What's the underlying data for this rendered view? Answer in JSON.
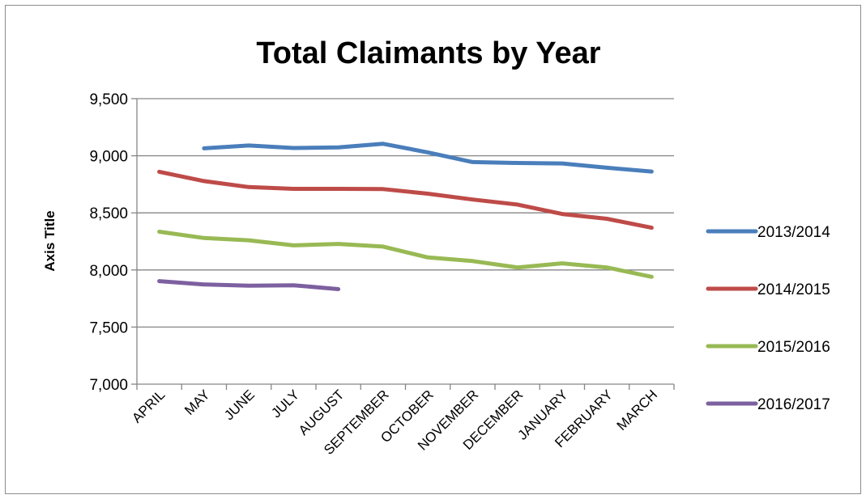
{
  "chart_data": {
    "type": "line",
    "title": "Total Claimants by Year",
    "xlabel": "",
    "ylabel": "Axis Title",
    "categories": [
      "APRIL",
      "MAY",
      "JUNE",
      "JULY",
      "AUGUST",
      "SEPTEMBER",
      "OCTOBER",
      "NOVEMBER",
      "DECEMBER",
      "JANUARY",
      "FEBRUARY",
      "MARCH"
    ],
    "ylim": [
      7000,
      9500
    ],
    "yticks": [
      7000,
      7500,
      8000,
      8500,
      9000,
      9500
    ],
    "ytick_labels": [
      "7,000",
      "7,500",
      "8,000",
      "8,500",
      "9,000",
      "9,500"
    ],
    "grid": true,
    "legend_position": "right",
    "series": [
      {
        "name": "2013/2014",
        "color": "#4a7ebb",
        "values": [
          null,
          9065,
          9090,
          9068,
          9073,
          9105,
          9030,
          8945,
          8937,
          8933,
          8895,
          8862
        ]
      },
      {
        "name": "2014/2015",
        "color": "#be4b48",
        "values": [
          8860,
          8778,
          8726,
          8710,
          8710,
          8708,
          8668,
          8617,
          8573,
          8490,
          8448,
          8370
        ]
      },
      {
        "name": "2015/2016",
        "color": "#98b954",
        "values": [
          8335,
          8280,
          8260,
          8215,
          8228,
          8205,
          8110,
          8078,
          8022,
          8058,
          8022,
          7940
        ]
      },
      {
        "name": "2016/2017",
        "color": "#7d60a0",
        "values": [
          7902,
          7873,
          7862,
          7866,
          7832,
          null,
          null,
          null,
          null,
          null,
          null,
          null
        ]
      }
    ]
  }
}
